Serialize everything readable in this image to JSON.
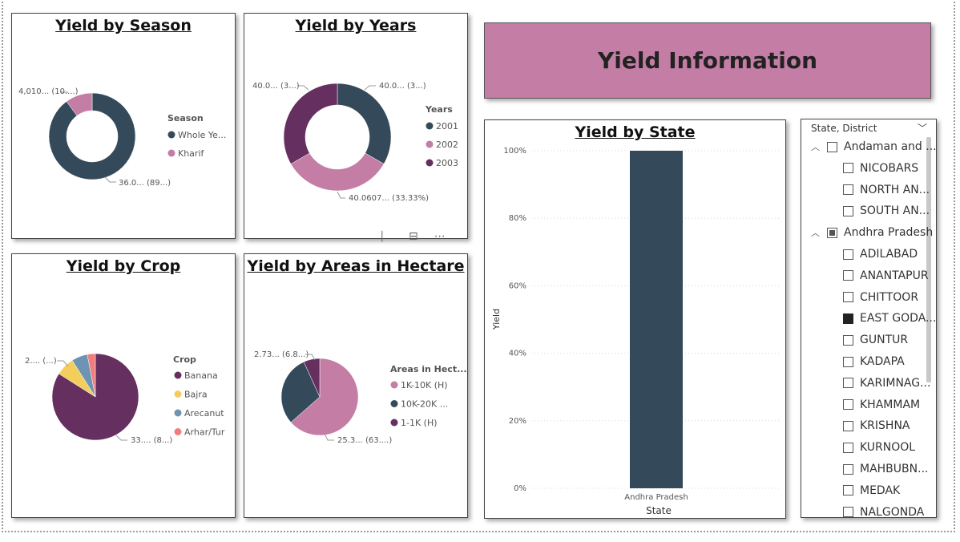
{
  "banner": {
    "title": "Yield Information"
  },
  "season_chart": {
    "title": "Yield by Season",
    "legend_title": "Season",
    "legend": [
      {
        "label": "Whole Ye...",
        "color": "#344a5a"
      },
      {
        "label": "Kharif",
        "color": "#c47da5"
      }
    ],
    "labels": {
      "small": "4,010... (10....)",
      "large": "36.0... (89...)"
    },
    "chart_data": {
      "type": "pie",
      "donut": true,
      "categories": [
        "Whole Year",
        "Kharif"
      ],
      "values": [
        89.9,
        10.1
      ]
    }
  },
  "years_chart": {
    "title": "Yield by Years",
    "legend_title": "Years",
    "legend": [
      {
        "label": "2001",
        "color": "#344a5a"
      },
      {
        "label": "2002",
        "color": "#c47da5"
      },
      {
        "label": "2003",
        "color": "#65305f"
      }
    ],
    "labels": {
      "left": "40.0... (3...)",
      "right": "40.0... (3...)",
      "bottom": "40.0607... (33.33%)"
    },
    "chart_data": {
      "type": "pie",
      "donut": true,
      "categories": [
        "2001",
        "2002",
        "2003"
      ],
      "values": [
        33.33,
        33.33,
        33.33
      ]
    }
  },
  "crop_chart": {
    "title": "Yield by Crop",
    "legend_title": "Crop",
    "legend": [
      {
        "label": "Banana",
        "color": "#65305f"
      },
      {
        "label": "Bajra",
        "color": "#f4ce5c"
      },
      {
        "label": "Arecanut",
        "color": "#6f93b3"
      },
      {
        "label": "Arhar/Tur",
        "color": "#ef7f7f"
      }
    ],
    "labels": {
      "small": "2.... (...)",
      "large": "33.... (8...)"
    },
    "chart_data": {
      "type": "pie",
      "categories": [
        "Banana",
        "Bajra",
        "Arecanut",
        "Arhar/Tur"
      ],
      "values": [
        84,
        7,
        6,
        3
      ]
    }
  },
  "areas_chart": {
    "title": "Yield by Areas in Hectare",
    "legend_title": "Areas in Hect...",
    "legend": [
      {
        "label": "1K-10K (H)",
        "color": "#c47da5"
      },
      {
        "label": "10K-20K ...",
        "color": "#344a5a"
      },
      {
        "label": "1-1K (H)",
        "color": "#65305f"
      }
    ],
    "labels": {
      "small": "2.73... (6.8...)",
      "large": "25.3... (63....)"
    },
    "chart_data": {
      "type": "pie",
      "categories": [
        "1K-10K (H)",
        "10K-20K (H)",
        "1-1K (H)"
      ],
      "values": [
        63.5,
        29.7,
        6.8
      ]
    }
  },
  "state_chart": {
    "title": "Yield by State",
    "ylabel": "Yield",
    "xlabel": "State",
    "y_ticks": [
      "100%",
      "80%",
      "60%",
      "40%",
      "20%",
      "0%"
    ],
    "chart_data": {
      "type": "bar",
      "categories": [
        "Andhra Pradesh"
      ],
      "values": [
        100
      ],
      "ylim": [
        0,
        100
      ],
      "xlabel": "State",
      "ylabel": "Yield",
      "color": "#344a5a"
    }
  },
  "slicer": {
    "header": "State, District",
    "items": [
      {
        "label": "Andaman and ...",
        "level": 0,
        "state": "empty"
      },
      {
        "label": "NICOBARS",
        "level": 1,
        "state": "empty"
      },
      {
        "label": "NORTH AN...",
        "level": 1,
        "state": "empty"
      },
      {
        "label": "SOUTH AN...",
        "level": 1,
        "state": "empty"
      },
      {
        "label": "Andhra Pradesh",
        "level": 0,
        "state": "partial"
      },
      {
        "label": "ADILABAD",
        "level": 1,
        "state": "empty"
      },
      {
        "label": "ANANTAPUR",
        "level": 1,
        "state": "empty"
      },
      {
        "label": "CHITTOOR",
        "level": 1,
        "state": "empty"
      },
      {
        "label": "EAST GODA...",
        "level": 1,
        "state": "checked"
      },
      {
        "label": "GUNTUR",
        "level": 1,
        "state": "empty"
      },
      {
        "label": "KADAPA",
        "level": 1,
        "state": "empty"
      },
      {
        "label": "KARIMNAG...",
        "level": 1,
        "state": "empty"
      },
      {
        "label": "KHAMMAM",
        "level": 1,
        "state": "empty"
      },
      {
        "label": "KRISHNA",
        "level": 1,
        "state": "empty"
      },
      {
        "label": "KURNOOL",
        "level": 1,
        "state": "empty"
      },
      {
        "label": "MAHBUBN...",
        "level": 1,
        "state": "empty"
      },
      {
        "label": "MEDAK",
        "level": 1,
        "state": "empty"
      },
      {
        "label": "NALGONDA",
        "level": 1,
        "state": "empty"
      }
    ]
  }
}
